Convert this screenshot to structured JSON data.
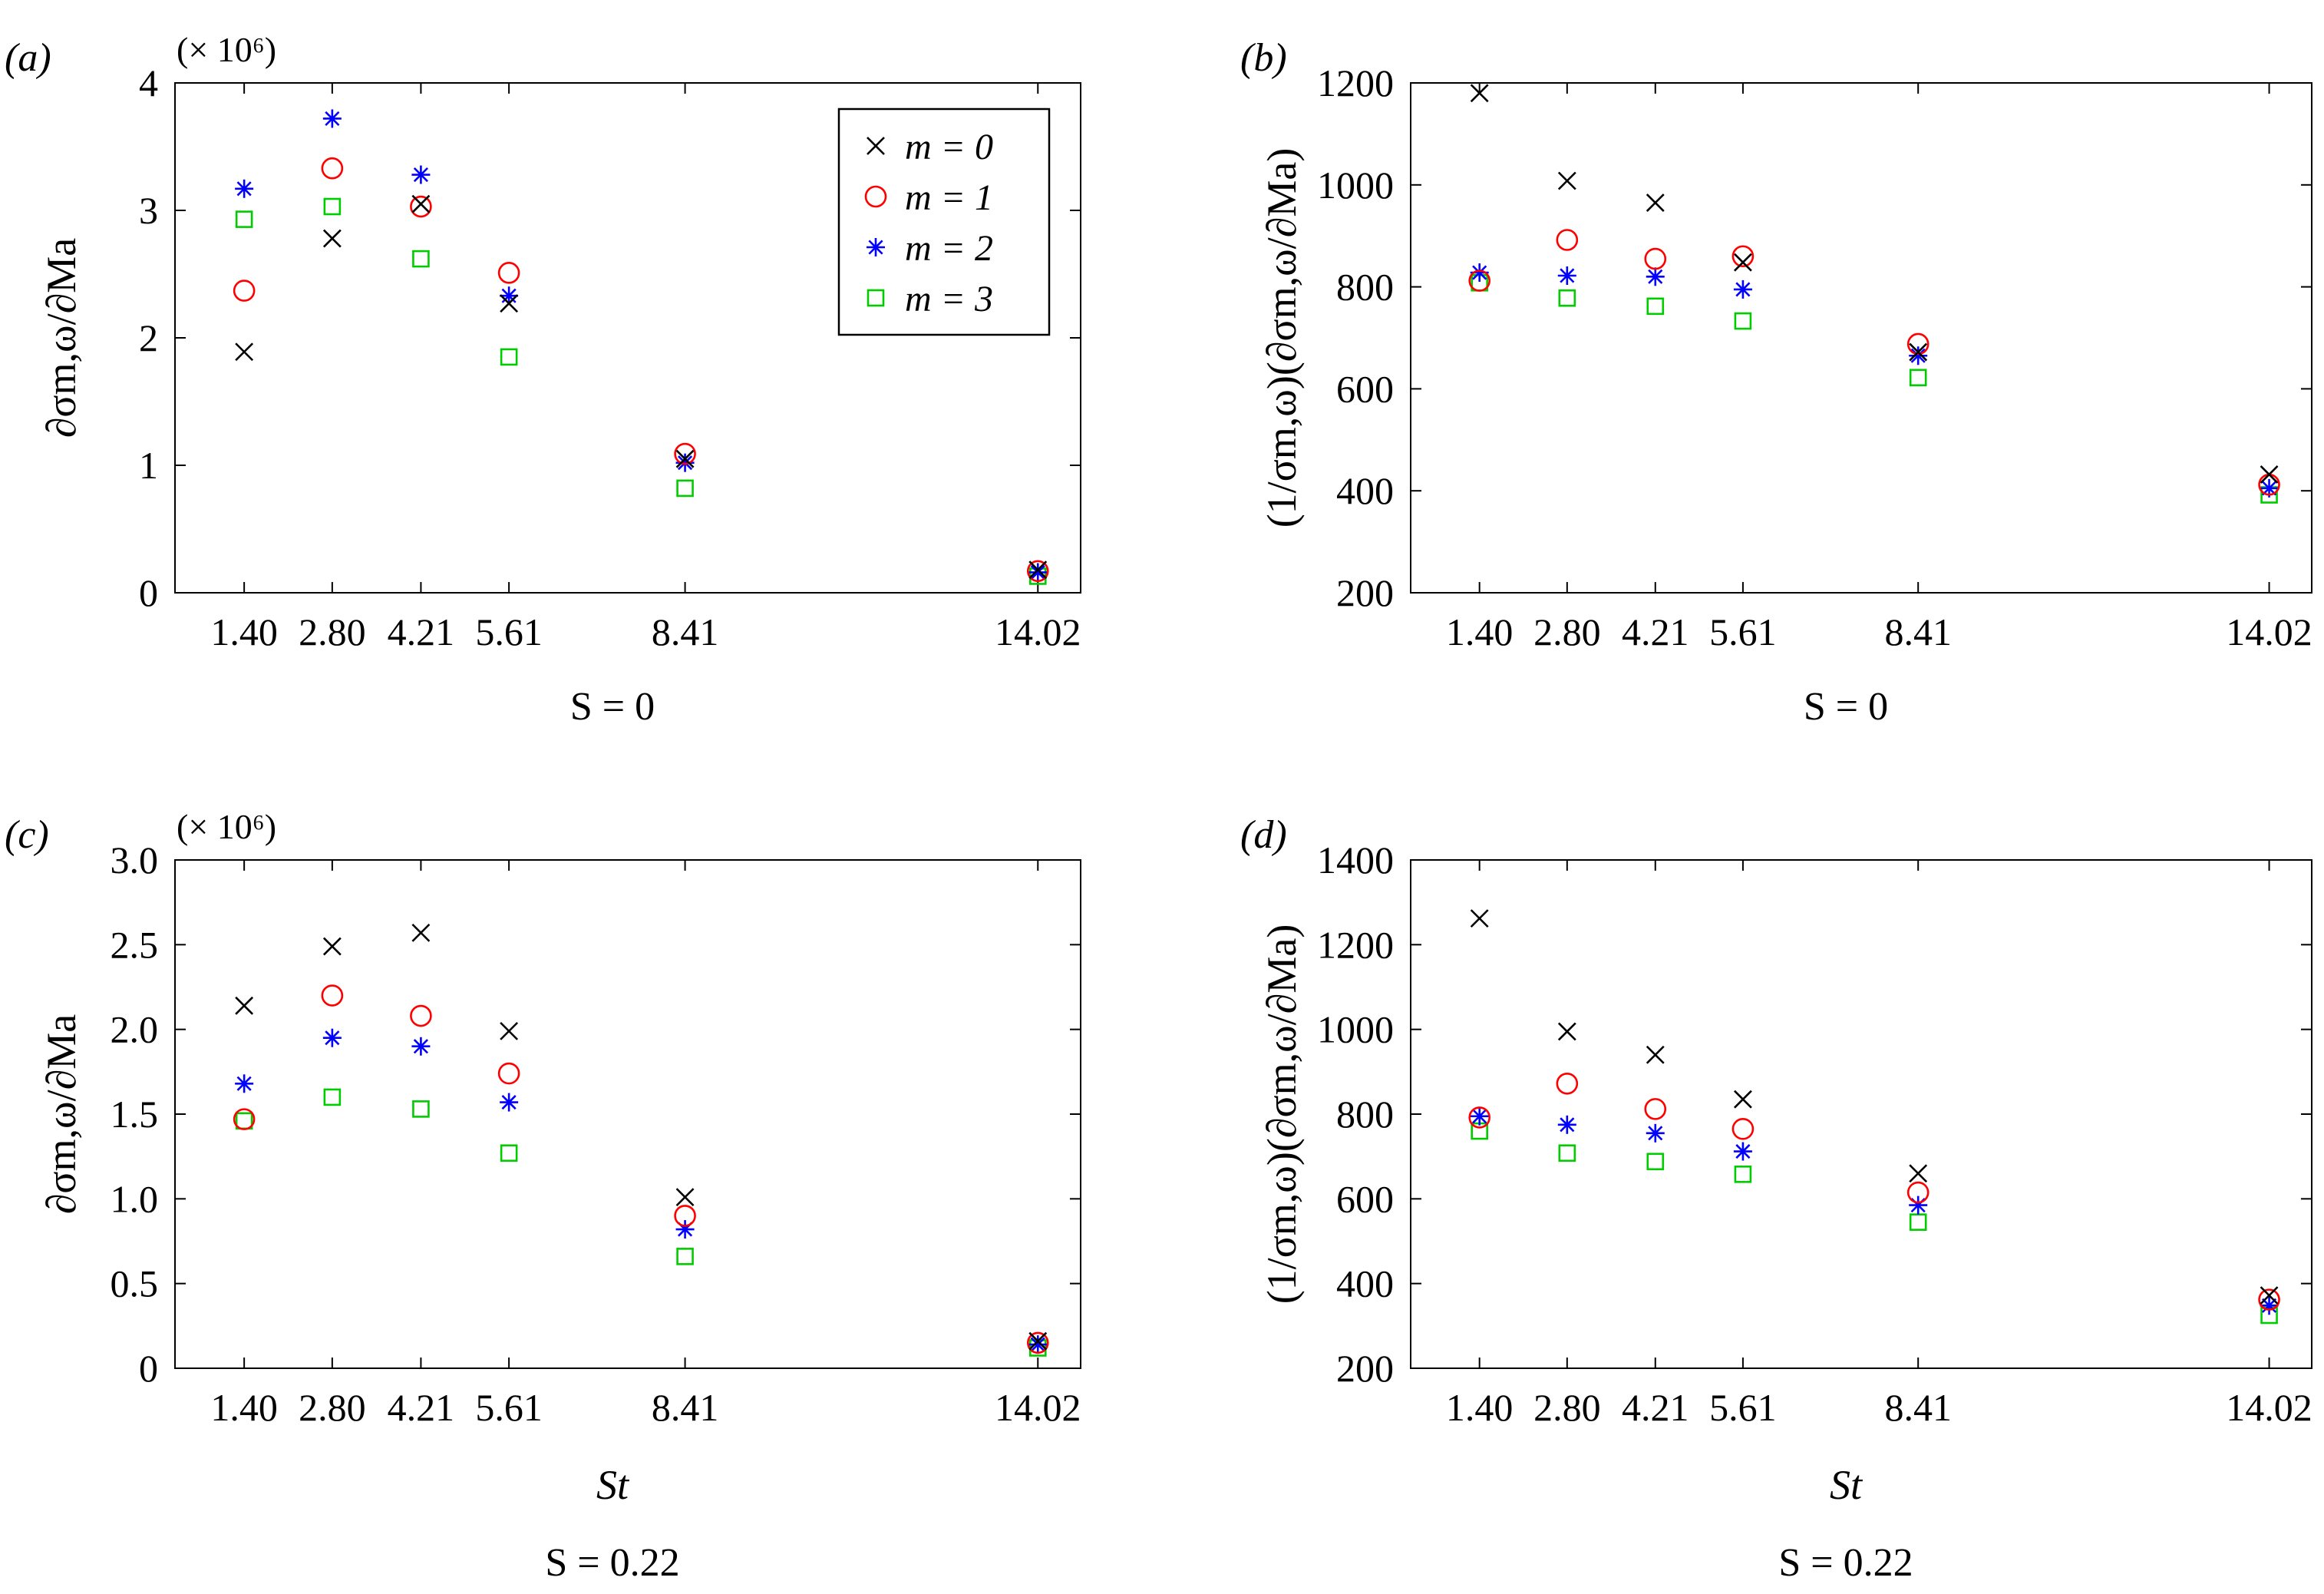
{
  "figure": {
    "legend": [
      {
        "marker": "x",
        "label": "m = 0",
        "color": "#000000"
      },
      {
        "marker": "o",
        "label": "m = 1",
        "color": "#ff0000"
      },
      {
        "marker": "*",
        "label": "m = 2",
        "color": "#0000ff"
      },
      {
        "marker": "s",
        "label": "m = 3",
        "color": "#00cc00"
      }
    ]
  },
  "chart_data": [
    {
      "id": "a",
      "type": "scatter",
      "panel_label": "(a)",
      "scale_label": "(× 10⁶)",
      "ylabel": "∂σm,ω/∂Ma",
      "xlabel": "",
      "condition": "S = 0",
      "categories": [
        "1.40",
        "2.80",
        "4.21",
        "5.61",
        "8.41",
        "14.02"
      ],
      "x": [
        1.4,
        2.8,
        4.21,
        5.61,
        8.41,
        14.02
      ],
      "xlim": [
        0.3,
        14.7
      ],
      "ylim": [
        0,
        4
      ],
      "yticks": [
        0,
        1,
        2,
        3,
        4
      ],
      "ytick_labels": [
        "0",
        "1",
        "2",
        "3",
        "4"
      ],
      "series": [
        {
          "name": "m = 0",
          "marker": "x",
          "color": "#000000",
          "values": [
            1.89,
            2.78,
            3.05,
            2.27,
            1.05,
            0.18
          ]
        },
        {
          "name": "m = 1",
          "marker": "o",
          "color": "#ff0000",
          "values": [
            2.37,
            3.33,
            3.03,
            2.51,
            1.09,
            0.17
          ]
        },
        {
          "name": "m = 2",
          "marker": "*",
          "color": "#0000ff",
          "values": [
            3.17,
            3.72,
            3.28,
            2.33,
            1.02,
            0.16
          ]
        },
        {
          "name": "m = 3",
          "marker": "s",
          "color": "#00cc00",
          "values": [
            2.93,
            3.03,
            2.62,
            1.85,
            0.82,
            0.13
          ]
        }
      ]
    },
    {
      "id": "b",
      "type": "scatter",
      "panel_label": "(b)",
      "scale_label": "",
      "ylabel": "(1/σm,ω)(∂σm,ω/∂Ma)",
      "xlabel": "",
      "condition": "S = 0",
      "categories": [
        "1.40",
        "2.80",
        "4.21",
        "5.61",
        "8.41",
        "14.02"
      ],
      "x": [
        1.4,
        2.8,
        4.21,
        5.61,
        8.41,
        14.02
      ],
      "xlim": [
        0.3,
        14.7
      ],
      "ylim": [
        200,
        1200
      ],
      "yticks": [
        200,
        400,
        600,
        800,
        1000,
        1200
      ],
      "ytick_labels": [
        "200",
        "400",
        "600",
        "800",
        "1000",
        "1200"
      ],
      "series": [
        {
          "name": "m = 0",
          "marker": "x",
          "color": "#000000",
          "values": [
            1180,
            1008,
            965,
            848,
            672,
            432
          ]
        },
        {
          "name": "m = 1",
          "marker": "o",
          "color": "#ff0000",
          "values": [
            812,
            892,
            855,
            860,
            688,
            412
          ]
        },
        {
          "name": "m = 2",
          "marker": "*",
          "color": "#0000ff",
          "values": [
            828,
            822,
            820,
            795,
            665,
            405
          ]
        },
        {
          "name": "m = 3",
          "marker": "s",
          "color": "#00cc00",
          "values": [
            808,
            778,
            762,
            733,
            622,
            392
          ]
        }
      ]
    },
    {
      "id": "c",
      "type": "scatter",
      "panel_label": "(c)",
      "scale_label": "(× 10⁶)",
      "ylabel": "∂σm,ω/∂Ma",
      "xlabel": "St",
      "condition": "S = 0.22",
      "categories": [
        "1.40",
        "2.80",
        "4.21",
        "5.61",
        "8.41",
        "14.02"
      ],
      "x": [
        1.4,
        2.8,
        4.21,
        5.61,
        8.41,
        14.02
      ],
      "xlim": [
        0.3,
        14.7
      ],
      "ylim": [
        0,
        3.0
      ],
      "yticks": [
        0,
        0.5,
        1.0,
        1.5,
        2.0,
        2.5,
        3.0
      ],
      "ytick_labels": [
        "0",
        "0.5",
        "1.0",
        "1.5",
        "2.0",
        "2.5",
        "3.0"
      ],
      "series": [
        {
          "name": "m = 0",
          "marker": "x",
          "color": "#000000",
          "values": [
            2.14,
            2.49,
            2.57,
            1.99,
            1.01,
            0.16
          ]
        },
        {
          "name": "m = 1",
          "marker": "o",
          "color": "#ff0000",
          "values": [
            1.47,
            2.2,
            2.08,
            1.74,
            0.9,
            0.15
          ]
        },
        {
          "name": "m = 2",
          "marker": "*",
          "color": "#0000ff",
          "values": [
            1.68,
            1.95,
            1.9,
            1.57,
            0.82,
            0.14
          ]
        },
        {
          "name": "m = 3",
          "marker": "s",
          "color": "#00cc00",
          "values": [
            1.46,
            1.6,
            1.53,
            1.27,
            0.66,
            0.12
          ]
        }
      ]
    },
    {
      "id": "d",
      "type": "scatter",
      "panel_label": "(d)",
      "scale_label": "",
      "ylabel": "(1/σm,ω)(∂σm,ω/∂Ma)",
      "xlabel": "St",
      "condition": "S = 0.22",
      "categories": [
        "1.40",
        "2.80",
        "4.21",
        "5.61",
        "8.41",
        "14.02"
      ],
      "x": [
        1.4,
        2.8,
        4.21,
        5.61,
        8.41,
        14.02
      ],
      "xlim": [
        0.3,
        14.7
      ],
      "ylim": [
        200,
        1400
      ],
      "yticks": [
        200,
        400,
        600,
        800,
        1000,
        1200,
        1400
      ],
      "ytick_labels": [
        "200",
        "400",
        "600",
        "800",
        "1000",
        "1200",
        "1400"
      ],
      "series": [
        {
          "name": "m = 0",
          "marker": "x",
          "color": "#000000",
          "values": [
            1262,
            995,
            940,
            835,
            660,
            372
          ]
        },
        {
          "name": "m = 1",
          "marker": "o",
          "color": "#ff0000",
          "values": [
            792,
            872,
            812,
            765,
            615,
            362
          ]
        },
        {
          "name": "m = 2",
          "marker": "*",
          "color": "#0000ff",
          "values": [
            795,
            775,
            755,
            712,
            585,
            348
          ]
        },
        {
          "name": "m = 3",
          "marker": "s",
          "color": "#00cc00",
          "values": [
            760,
            708,
            688,
            658,
            545,
            325
          ]
        }
      ]
    }
  ]
}
